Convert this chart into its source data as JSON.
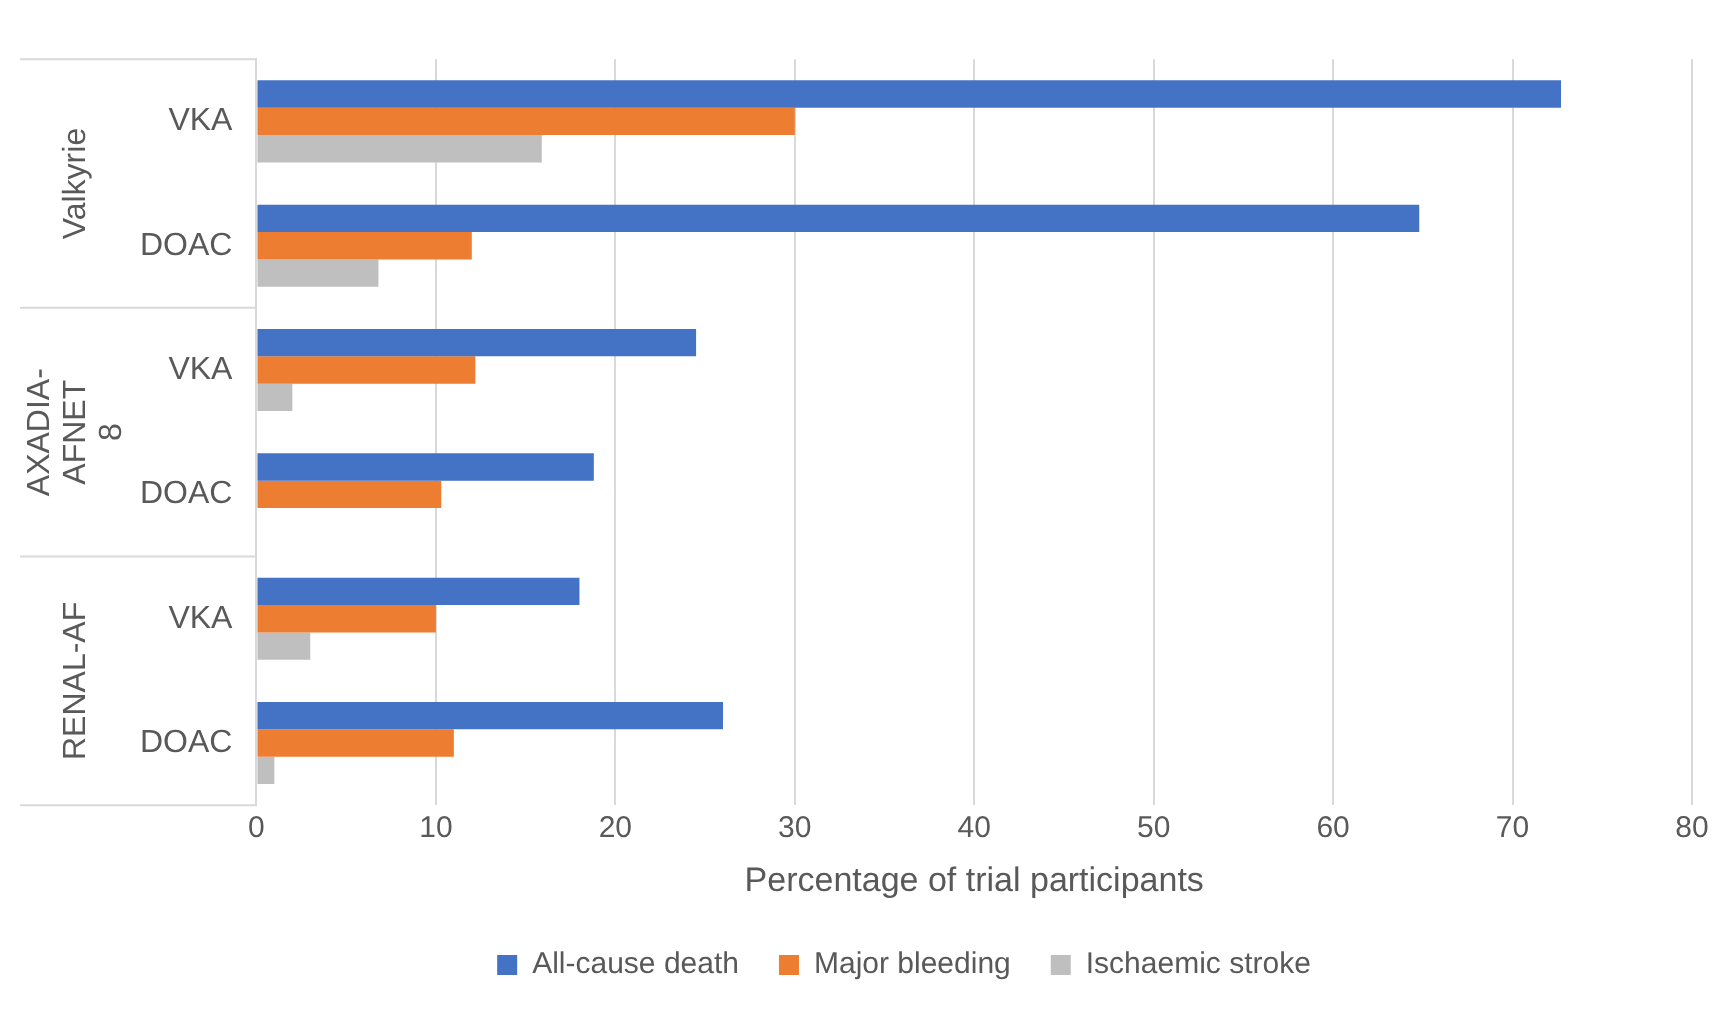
{
  "chart_data": {
    "type": "bar",
    "orientation": "horizontal",
    "xlabel": "Percentage of trial participants",
    "categories": [
      "VKA",
      "DOAC",
      "VKA",
      "DOAC",
      "VKA",
      "DOAC"
    ],
    "annotations": [
      "Valkyrie",
      "AXADIA-AFNET 8",
      "RENAL-AF"
    ],
    "series": [
      {
        "name": "All-cause death",
        "color": "#4472c4",
        "values": [
          72.7,
          64.8,
          24.5,
          18.8,
          18.0,
          26.0
        ]
      },
      {
        "name": "Major bleeding",
        "color": "#ed7d31",
        "values": [
          30.0,
          12.0,
          12.2,
          10.3,
          10.0,
          11.0
        ]
      },
      {
        "name": "Ischaemic stroke",
        "color": "#bfbfbf",
        "values": [
          15.9,
          6.8,
          2.0,
          null,
          3.0,
          1.0
        ]
      }
    ],
    "xlim": [
      0,
      80
    ],
    "xticks": [
      0,
      10,
      20,
      30,
      40,
      50,
      60,
      70,
      80
    ],
    "grid": "x",
    "legend": "bottom"
  }
}
